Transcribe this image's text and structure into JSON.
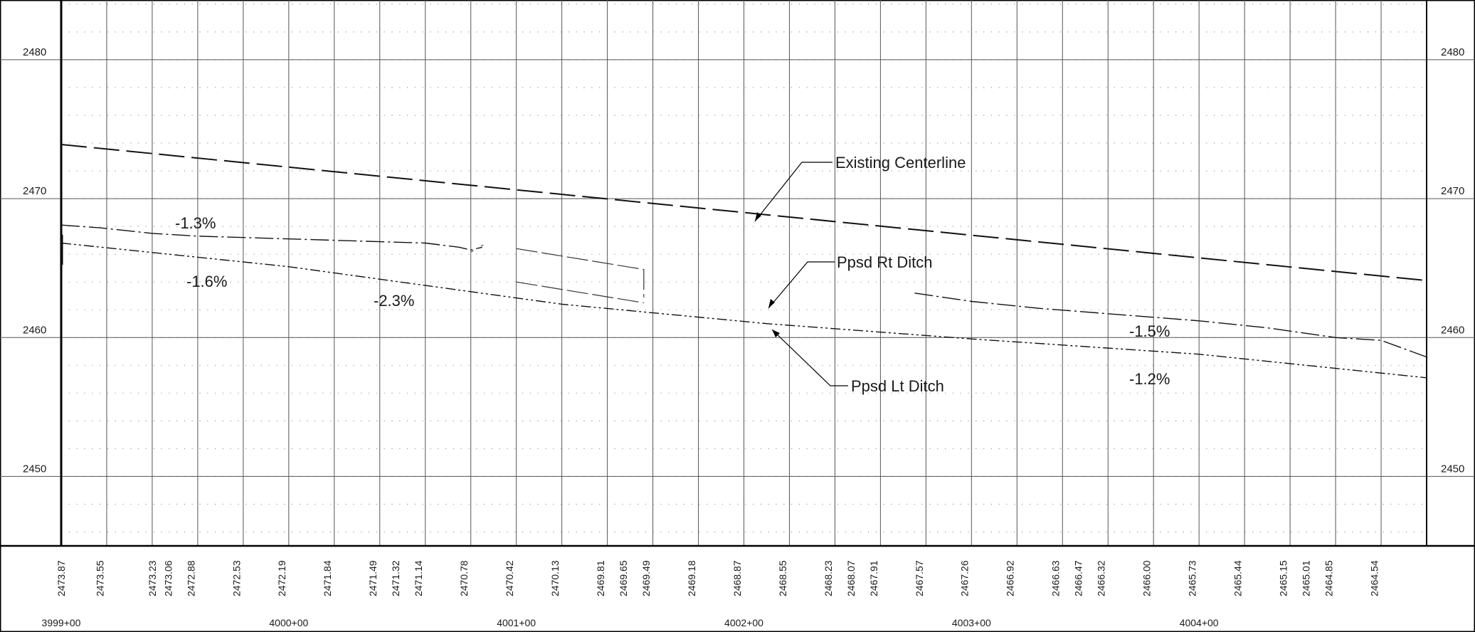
{
  "profile": {
    "station_start": 399900,
    "station_end": 400500,
    "elevation_min": 2445,
    "elevation_max": 2484.3,
    "elevation_labels": [
      "2480",
      "2470",
      "2460",
      "2450"
    ],
    "elevation_values": [
      2480,
      2470,
      2460,
      2450
    ],
    "station_labels": [
      "3999+00",
      "4000+00",
      "4001+00",
      "4002+00",
      "4003+00",
      "4004+00"
    ],
    "station_values": [
      399900,
      400000,
      400100,
      400200,
      400300,
      400400
    ],
    "existing_ground_elevations": [
      "2473.87",
      "2473.55",
      "2473.23",
      "2473.06",
      "2472.88",
      "2472.53",
      "2472.19",
      "2471.84",
      "2471.49",
      "2471.32",
      "2471.14",
      "2470.78",
      "2470.42",
      "2470.13",
      "2469.81",
      "2469.65",
      "2469.49",
      "2469.18",
      "2468.87",
      "2468.55",
      "2468.23",
      "2468.07",
      "2467.91",
      "2467.57",
      "2467.26",
      "2466.92",
      "2466.63",
      "2466.47",
      "2466.32",
      "2466.00",
      "2465.73",
      "2465.44",
      "2465.15",
      "2465.01",
      "2464.85",
      "2464.54"
    ],
    "existing_ground_stations": [
      399900,
      399917,
      399940,
      399947,
      399957,
      399977,
      399997,
      400017,
      400037,
      400047,
      400057,
      400077,
      400097,
      400117,
      400137,
      400147,
      400157,
      400177,
      400197,
      400217,
      400237,
      400247,
      400257,
      400277,
      400297,
      400317,
      400337,
      400347,
      400357,
      400377,
      400397,
      400417,
      400437,
      400447,
      400457,
      400477
    ]
  },
  "lines": {
    "existing_centerline": {
      "stations": [
        399900,
        400500
      ],
      "elevations": [
        2473.9,
        2464.1
      ]
    },
    "rt_ditch_segment_1": {
      "stations": [
        399900,
        399917,
        399940,
        399960,
        399980,
        400000,
        400020,
        400040,
        400060,
        400075,
        400080,
        400085
      ],
      "elevations": [
        2468.1,
        2467.9,
        2467.5,
        2467.3,
        2467.2,
        2467.1,
        2467.0,
        2466.9,
        2466.8,
        2466.5,
        2466.3,
        2466.5
      ]
    },
    "rt_ditch_segment_2": {
      "stations": [
        400275,
        400300,
        400330,
        400400,
        400430,
        400460,
        400480,
        400500
      ],
      "elevations": [
        2463.2,
        2462.6,
        2462.1,
        2461.2,
        2460.7,
        2460.0,
        2459.8,
        2458.6
      ]
    },
    "lt_ditch": {
      "stations": [
        399900,
        400000,
        400120,
        400210,
        400300,
        400400,
        400500
      ],
      "elevations": [
        2466.8,
        2465.1,
        2462.4,
        2461.0,
        2459.9,
        2458.8,
        2457.1
      ]
    },
    "culvert_upper": {
      "stations": [
        400100,
        400156,
        400156
      ],
      "elevations": [
        2466.4,
        2464.9,
        2462.9
      ]
    },
    "culvert_lower": {
      "stations": [
        400100,
        400156
      ],
      "elevations": [
        2464.0,
        2462.5
      ]
    }
  },
  "grades": [
    "-1.3%",
    "-1.6%",
    "-2.3%",
    "-1.5%",
    "-1.2%"
  ],
  "callouts": {
    "existing_centerline": "Existing Centerline",
    "ppsd_rt_ditch": "Ppsd Rt Ditch",
    "ppsd_lt_ditch": "Ppsd Lt Ditch"
  }
}
